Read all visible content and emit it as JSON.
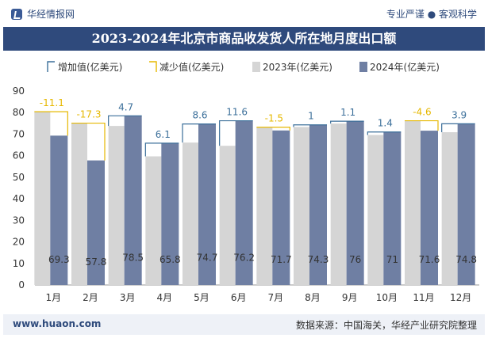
{
  "header": {
    "brand": "华经情报网",
    "slogan": "专业严谨 ● 客观科学"
  },
  "title": "2023-2024年北京市商品收发货人所在地月度出口额",
  "footer": {
    "website": "www.huaon.com",
    "source": "数据来源：中国海关，华经产业研究院整理"
  },
  "colors": {
    "bar2023": "#d5d5d5",
    "bar2024": "#6f7fa3",
    "increase": "#3b6f9a",
    "decrease": "#e6b800",
    "title_bg": "#2f4a7c"
  },
  "chart_data": {
    "type": "bar",
    "categories": [
      "1月",
      "2月",
      "3月",
      "4月",
      "5月",
      "6月",
      "7月",
      "8月",
      "9月",
      "10月",
      "11月",
      "12月"
    ],
    "series": [
      {
        "name": "2023年(亿美元)",
        "values": [
          80.4,
          75.1,
          73.8,
          59.7,
          66.1,
          64.6,
          73.2,
          73.3,
          74.9,
          69.6,
          76.2,
          70.9
        ]
      },
      {
        "name": "2024年(亿美元)",
        "values": [
          69.3,
          57.8,
          78.5,
          65.8,
          74.7,
          76.2,
          71.7,
          74.3,
          76,
          71,
          71.6,
          74.8
        ]
      }
    ],
    "change_series": [
      {
        "name": "增加值(亿美元)"
      },
      {
        "name": "减少值(亿美元)"
      }
    ],
    "change_labels": [
      "-11.1",
      "-17.3",
      "4.7",
      "6.1",
      "8.6",
      "11.6",
      "-1.5",
      "1",
      "1.1",
      "1.4",
      "-4.6",
      "3.9"
    ],
    "ylim": [
      0,
      90
    ],
    "yticks": [
      0,
      10,
      20,
      30,
      40,
      50,
      60,
      70,
      80,
      90
    ],
    "legend_position": "top"
  }
}
